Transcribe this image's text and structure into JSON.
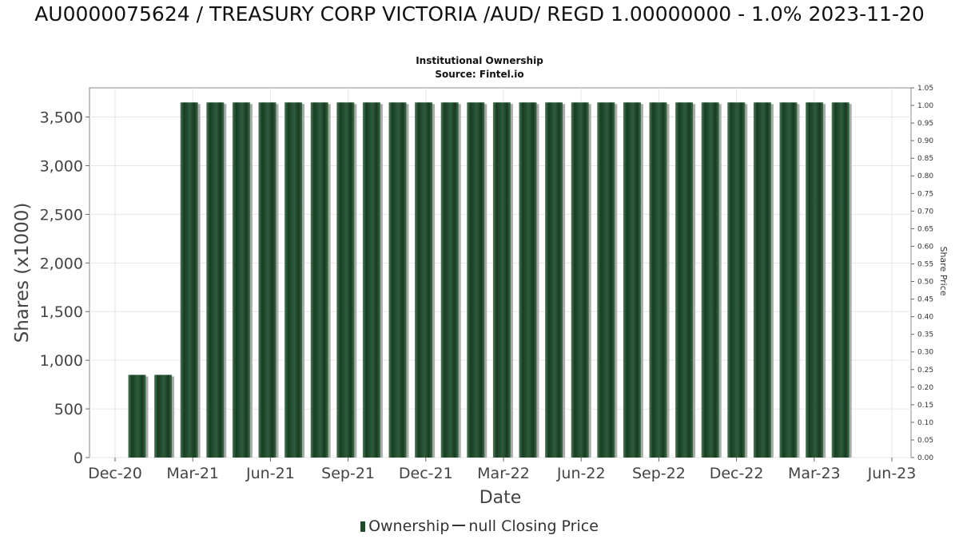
{
  "chart_data": {
    "type": "bar",
    "title": "AU0000075624 / TREASURY CORP VICTORIA /AUD/ REGD 1.00000000 - 1.0% 2023-11-20",
    "subtitle": "Institutional Ownership",
    "source": "Source: Fintel.io",
    "xlabel": "Date",
    "ylabel": "Shares (x1000)",
    "ylabel_right": "Share Price",
    "ylim": [
      0,
      3800
    ],
    "ylim_right": [
      0,
      1.05
    ],
    "grid": true,
    "x_ticks": [
      "Dec-20",
      "Mar-21",
      "Jun-21",
      "Sep-21",
      "Dec-21",
      "Mar-22",
      "Jun-22",
      "Sep-22",
      "Dec-22",
      "Mar-23",
      "Jun-23"
    ],
    "y_ticks": [
      "0",
      "500",
      "1,000",
      "1,500",
      "2,000",
      "2,500",
      "3,000",
      "3,500"
    ],
    "y_ticks_right": [
      "0.00",
      "0.05",
      "0.10",
      "0.15",
      "0.20",
      "0.25",
      "0.30",
      "0.35",
      "0.40",
      "0.45",
      "0.50",
      "0.55",
      "0.60",
      "0.65",
      "0.70",
      "0.75",
      "0.80",
      "0.85",
      "0.90",
      "0.95",
      "1.00",
      "1.05"
    ],
    "series": [
      {
        "name": "Ownership",
        "color": "#1e4a2c",
        "values": [
          850,
          850,
          3650,
          3650,
          3650,
          3650,
          3650,
          3650,
          3650,
          3650,
          3650,
          3650,
          3650,
          3650,
          3650,
          3650,
          3650,
          3650,
          3650,
          3650,
          3650,
          3650,
          3650,
          3650,
          3650,
          3650,
          3650,
          3650
        ]
      }
    ],
    "legend": {
      "position": "bottom",
      "items": [
        "Ownership",
        "null Closing Price"
      ]
    }
  }
}
